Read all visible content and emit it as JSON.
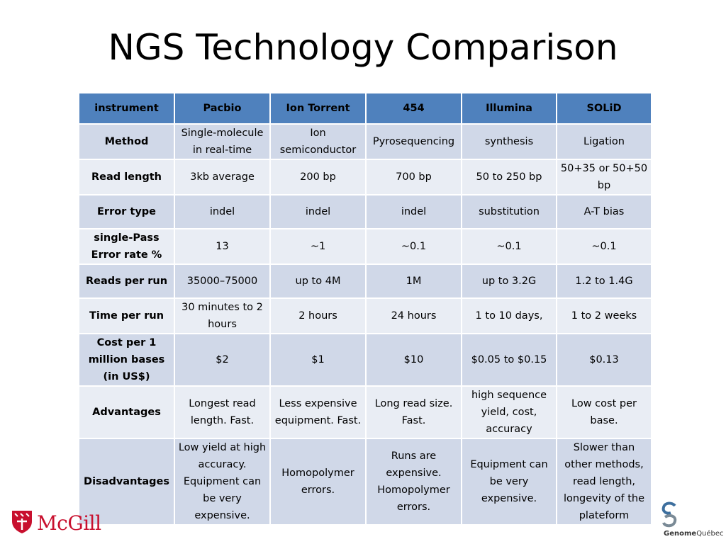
{
  "title": "NGS Technology Comparison",
  "table": {
    "headers": [
      "instrument",
      "Pacbio",
      "Ion Torrent",
      "454",
      "Illumina",
      "SOLiD"
    ],
    "rows": [
      {
        "label": "Method",
        "cells": [
          "Single-molecule in real-time",
          "Ion semiconductor",
          "Pyrosequencing",
          "synthesis",
          "Ligation"
        ]
      },
      {
        "label": "Read length",
        "cells": [
          "3kb average",
          "200 bp",
          "700 bp",
          "50 to 250 bp",
          "50+35 or 50+50 bp"
        ]
      },
      {
        "label": "Error type",
        "cells": [
          "indel",
          "indel",
          "indel",
          "substitution",
          "A-T bias"
        ]
      },
      {
        "label": "single-Pass Error rate %",
        "cells": [
          "13",
          "~1",
          "~0.1",
          "~0.1",
          "~0.1"
        ]
      },
      {
        "label": "Reads per run",
        "cells": [
          "35000–75000",
          "up to 4M",
          "1M",
          "up to 3.2G",
          "1.2 to 1.4G"
        ]
      },
      {
        "label": "Time per run",
        "cells": [
          "30 minutes to 2 hours",
          "2 hours",
          "24 hours",
          "1 to 10 days,",
          "1 to 2 weeks"
        ]
      },
      {
        "label": "Cost per 1 million bases (in US$)",
        "cells": [
          "$2",
          "$1",
          "$10",
          "$0.05 to $0.15",
          "$0.13"
        ]
      },
      {
        "label": "Advantages",
        "cells": [
          "Longest read length. Fast.",
          "Less expensive equipment. Fast.",
          "Long read size. Fast.",
          "high sequence yield, cost, accuracy",
          "Low cost per base."
        ]
      },
      {
        "label": "Disadvantages",
        "cells": [
          "Low yield at high accuracy. Equipment can be very expensive.",
          "Homopolymer errors.",
          "Runs are expensive. Homopolymer errors.",
          "Equipment can be very expensive.",
          "Slower than other methods, read length, longevity of the plateform"
        ]
      }
    ]
  },
  "logos": {
    "left": {
      "text": "McGill",
      "color": "#c8102e",
      "icon": "mcgill-shield-icon"
    },
    "right": {
      "text_bold": "Genome",
      "text": "Québec",
      "icon": "genome-quebec-g-icon"
    }
  },
  "colors": {
    "header": "#4f81bd",
    "row_odd": "#d0d8e8",
    "row_even": "#e9edf4"
  }
}
